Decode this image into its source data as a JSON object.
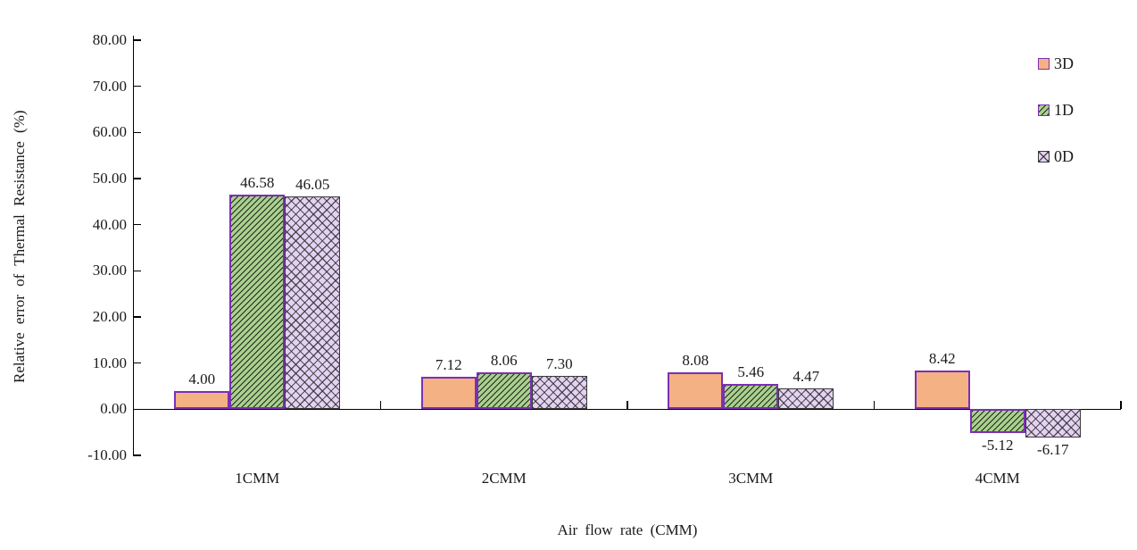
{
  "chart_data": {
    "type": "bar",
    "title": "",
    "xlabel": "Air flow rate (CMM)",
    "ylabel": "Relative error of Thermal Resistance (%)",
    "categories": [
      "1CMM",
      "2CMM",
      "3CMM",
      "4CMM"
    ],
    "series": [
      {
        "name": "3D",
        "values": [
          4.0,
          7.12,
          8.08,
          8.42
        ],
        "labels": [
          "4.00",
          "7.12",
          "8.08",
          "8.42"
        ],
        "fill": "#F4B183",
        "border": "#7C2FB5",
        "pattern": "solid"
      },
      {
        "name": "1D",
        "values": [
          46.58,
          8.06,
          5.46,
          -5.12
        ],
        "labels": [
          "46.58",
          "8.06",
          "5.46",
          "-5.12"
        ],
        "fill": "#A9D18E",
        "border": "#7C2FB5",
        "pattern": "diagonal"
      },
      {
        "name": "0D",
        "values": [
          46.05,
          7.3,
          4.47,
          -6.17
        ],
        "labels": [
          "46.05",
          "7.30",
          "4.47",
          "-6.17"
        ],
        "fill": "#E4D2F2",
        "border": "#3A3A3A",
        "pattern": "crosshatch"
      }
    ],
    "ylim": [
      -10,
      80
    ],
    "ytick_step": 10,
    "ytick_labels": [
      "80.00",
      "70.00",
      "60.00",
      "50.00",
      "40.00",
      "30.00",
      "20.00",
      "10.00",
      "0.00",
      "-10.00"
    ],
    "grid": false,
    "legend_position": "top-right",
    "data_labels": true,
    "axis_color": "#000000",
    "text_color": "#1a1a1a"
  }
}
